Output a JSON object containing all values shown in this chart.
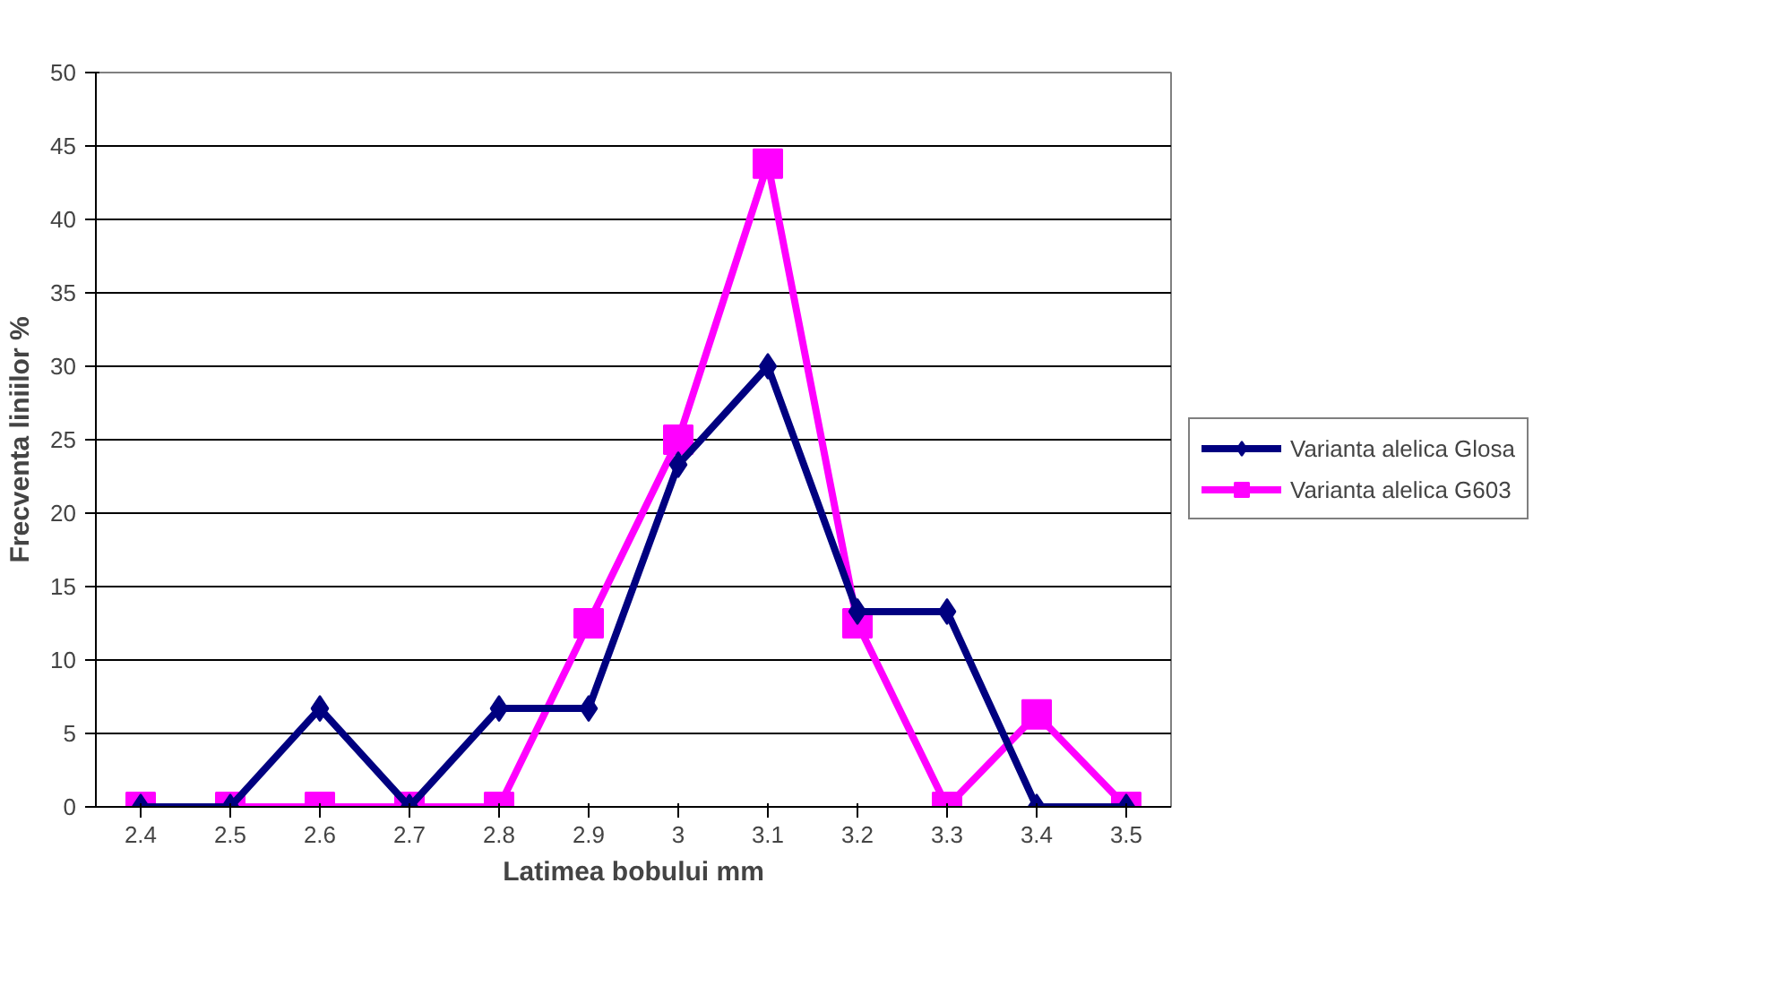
{
  "chart_data": {
    "type": "line",
    "xlabel": "Latimea bobului mm",
    "ylabel": "Frecventa liniilor %",
    "categories": [
      "2.4",
      "2.5",
      "2.6",
      "2.7",
      "2.8",
      "2.9",
      "3",
      "3.1",
      "3.2",
      "3.3",
      "3.4",
      "3.5"
    ],
    "series": [
      {
        "name": "Varianta alelica Glosa",
        "color": "#000080",
        "marker": "diamond",
        "values": [
          0,
          0,
          6.7,
          0,
          6.7,
          6.7,
          23.3,
          30,
          13.3,
          13.3,
          0,
          0
        ]
      },
      {
        "name": "Varianta alelica G603",
        "color": "#ff00ff",
        "marker": "square",
        "values": [
          0,
          0,
          0,
          0,
          0,
          12.5,
          25,
          43.8,
          12.5,
          0,
          6.3,
          0
        ]
      }
    ],
    "ylim": [
      0,
      50
    ],
    "yticks": [
      0,
      5,
      10,
      15,
      20,
      25,
      30,
      35,
      40,
      45,
      50
    ],
    "grid": "y",
    "legend": "right",
    "line_style": "solid"
  }
}
